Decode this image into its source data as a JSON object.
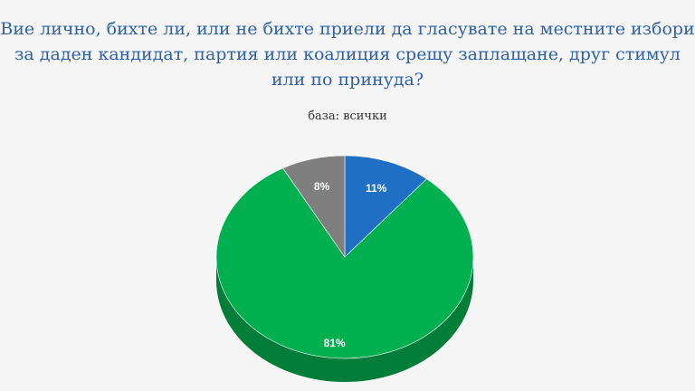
{
  "colors": {
    "background": "#f5f5f5",
    "title": "#2f62a8"
  },
  "chart_data": {
    "type": "pie",
    "title": "Вие лично, бихте ли, или не бихте приели да гласувате на местните избори за даден кандидат, партия или коалиция срещу заплащане, друг стимул или по принуда?",
    "subtitle": "база: всички",
    "legend": "none",
    "style": "3d",
    "slices": [
      {
        "label": "11%",
        "value": 11,
        "color": "#1f6fc5",
        "side_color": "#17539a"
      },
      {
        "label": "81%",
        "value": 81,
        "color": "#00b050",
        "side_color": "#007d38"
      },
      {
        "label": "8%",
        "value": 8,
        "color": "#7f7f7f",
        "side_color": "#5c5c5c"
      }
    ]
  }
}
